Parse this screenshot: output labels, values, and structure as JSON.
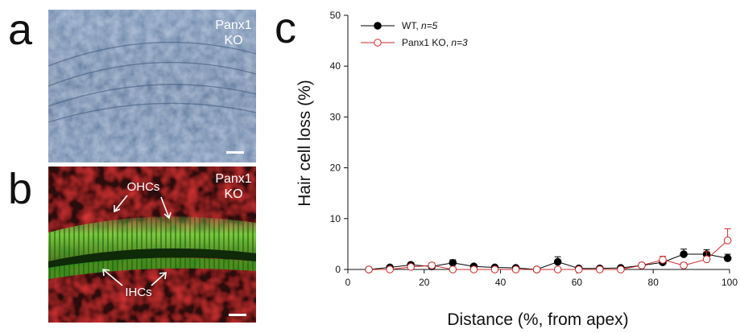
{
  "panels": {
    "a": {
      "letter": "a",
      "label_line1": "Panx1",
      "label_line2": "KO"
    },
    "b": {
      "letter": "b",
      "label_line1": "Panx1",
      "label_line2": "KO",
      "ohc_label": "OHCs",
      "ihc_label": "IHCs"
    },
    "c": {
      "letter": "c"
    }
  },
  "colors": {
    "wt": "#000000",
    "ko": "#cc2a2a",
    "brightfield": "#5f7da2",
    "fluor_green": "#6fc93a",
    "fluor_red": "#d81e1e"
  },
  "chart_data": {
    "type": "line",
    "xlabel": "Distance (%, from apex)",
    "ylabel": "Hair cell loss (%)",
    "xlim": [
      0,
      100
    ],
    "ylim": [
      0,
      50
    ],
    "xticks": [
      0,
      20,
      40,
      60,
      80,
      100
    ],
    "yticks": [
      0,
      10,
      20,
      30,
      40,
      50
    ],
    "legend_position": "top-left",
    "series": [
      {
        "name": "WT, ",
        "n_label": "n=5",
        "marker": "filled-circle",
        "x": [
          5.5,
          11,
          16.5,
          22,
          27.5,
          33,
          38.5,
          44,
          49.5,
          55,
          60.5,
          66,
          71.5,
          77,
          82.5,
          88,
          94,
          99.5
        ],
        "y": [
          0,
          0.4,
          0.9,
          0.6,
          1.3,
          0.6,
          0.4,
          0.3,
          0,
          1.5,
          0.2,
          0.2,
          0.3,
          0.8,
          1.4,
          3.0,
          3.0,
          2.2
        ],
        "err": [
          0,
          0.3,
          0.4,
          0.5,
          0.6,
          0.4,
          0.3,
          0.3,
          0,
          1.0,
          0.2,
          0.2,
          0.3,
          0.4,
          0.8,
          1.0,
          0.9,
          0.8
        ]
      },
      {
        "name": "Panx1 KO, ",
        "n_label": "n=3",
        "marker": "open-circle",
        "x": [
          5.5,
          11,
          16.5,
          22,
          27.5,
          33,
          38.5,
          44,
          49.5,
          55,
          60.5,
          66,
          71.5,
          77,
          82.5,
          88,
          94,
          99.5
        ],
        "y": [
          0,
          0,
          0.5,
          0.8,
          0,
          0,
          0,
          0,
          0,
          0,
          0,
          0,
          0,
          0.8,
          1.9,
          0.8,
          2.0,
          5.7
        ],
        "err": [
          0,
          0,
          0.3,
          0.5,
          0,
          0,
          0,
          0,
          0,
          0,
          0,
          0,
          0,
          0.4,
          0.7,
          0.5,
          1.5,
          2.3
        ]
      }
    ]
  }
}
